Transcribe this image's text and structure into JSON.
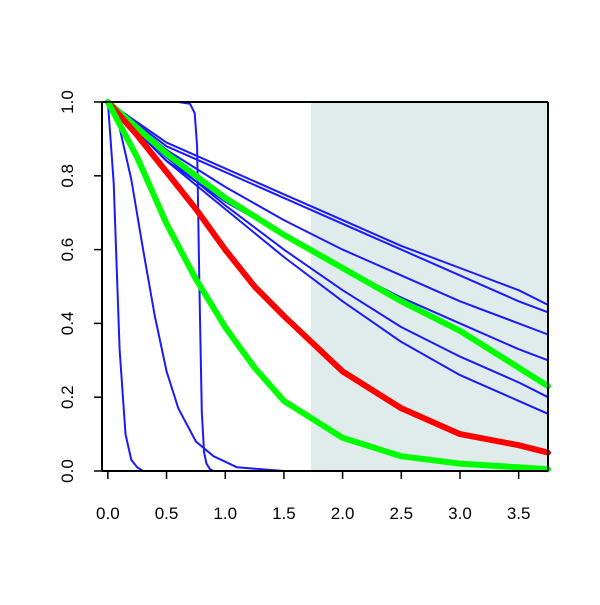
{
  "chart_data": {
    "type": "line",
    "title": "",
    "xlabel": "",
    "ylabel": "",
    "xlim": [
      -0.05,
      3.75
    ],
    "ylim": [
      0.0,
      1.0
    ],
    "x_ticks": [
      "0.0",
      "0.5",
      "1.0",
      "1.5",
      "2.0",
      "2.5",
      "3.0",
      "3.5"
    ],
    "y_ticks": [
      "0.0",
      "0.2",
      "0.4",
      "0.6",
      "0.8",
      "1.0"
    ],
    "grid": false,
    "shaded_region": {
      "x_start": 1.73,
      "x_end": 3.75,
      "color": "#e0ecec"
    },
    "series": [
      {
        "color": "#1a1aff",
        "linewidth": "thin",
        "x": [
          0.0,
          0.05,
          0.1,
          0.15,
          0.2,
          0.25,
          0.3,
          0.5,
          3.75
        ],
        "y": [
          1.0,
          0.78,
          0.33,
          0.1,
          0.03,
          0.01,
          0.0,
          0.0,
          0.0
        ]
      },
      {
        "color": "#1a1aff",
        "linewidth": "thin",
        "x": [
          0.0,
          0.1,
          0.2,
          0.3,
          0.4,
          0.5,
          0.6,
          0.75,
          0.9,
          1.1,
          1.5,
          3.75
        ],
        "y": [
          1.0,
          0.93,
          0.79,
          0.6,
          0.42,
          0.27,
          0.17,
          0.08,
          0.04,
          0.01,
          0.0,
          0.0
        ]
      },
      {
        "color": "#1a1aff",
        "linewidth": "thin",
        "x": [
          0.0,
          0.6,
          0.7,
          0.74,
          0.76,
          0.78,
          0.8,
          0.82,
          0.84,
          0.87,
          0.9,
          3.75
        ],
        "y": [
          1.0,
          1.0,
          0.995,
          0.97,
          0.88,
          0.5,
          0.16,
          0.05,
          0.02,
          0.005,
          0.0,
          0.0
        ]
      },
      {
        "color": "#1a1aff",
        "linewidth": "thin",
        "x": [
          0.0,
          0.5,
          1.0,
          1.5,
          2.0,
          2.5,
          3.0,
          3.5,
          3.75
        ],
        "y": [
          1.0,
          0.87,
          0.77,
          0.68,
          0.6,
          0.53,
          0.46,
          0.4,
          0.37
        ]
      },
      {
        "color": "#1a1aff",
        "linewidth": "thin",
        "x": [
          0.0,
          0.5,
          1.0,
          1.5,
          2.0,
          2.5,
          3.0,
          3.5,
          3.75
        ],
        "y": [
          1.0,
          0.84,
          0.73,
          0.64,
          0.55,
          0.47,
          0.4,
          0.33,
          0.3
        ]
      },
      {
        "color": "#1a1aff",
        "linewidth": "thin",
        "x": [
          0.0,
          0.5,
          1.0,
          1.5,
          2.0,
          2.5,
          3.0,
          3.5,
          3.75
        ],
        "y": [
          1.0,
          0.88,
          0.81,
          0.74,
          0.67,
          0.6,
          0.53,
          0.46,
          0.43
        ]
      },
      {
        "color": "#1a1aff",
        "linewidth": "thin",
        "x": [
          0.0,
          0.5,
          1.0,
          1.5,
          2.0,
          2.5,
          3.0,
          3.5,
          3.75
        ],
        "y": [
          1.0,
          0.89,
          0.82,
          0.75,
          0.68,
          0.61,
          0.55,
          0.49,
          0.45
        ]
      },
      {
        "color": "#1a1aff",
        "linewidth": "thin",
        "x": [
          0.0,
          0.5,
          1.0,
          1.5,
          2.0,
          2.5,
          3.0,
          3.5,
          3.75
        ],
        "y": [
          1.0,
          0.85,
          0.72,
          0.6,
          0.49,
          0.39,
          0.31,
          0.24,
          0.2
        ]
      },
      {
        "color": "#1a1aff",
        "linewidth": "thin",
        "x": [
          0.0,
          0.5,
          1.0,
          1.5,
          2.0,
          2.5,
          3.0,
          3.5,
          3.75
        ],
        "y": [
          1.0,
          0.84,
          0.71,
          0.58,
          0.46,
          0.35,
          0.26,
          0.19,
          0.155
        ]
      },
      {
        "color": "#00ff00",
        "linewidth": "thick",
        "x": [
          0.0,
          0.5,
          1.0,
          1.5,
          2.0,
          2.5,
          3.0,
          3.5,
          3.75
        ],
        "y": [
          1.0,
          0.86,
          0.74,
          0.64,
          0.55,
          0.46,
          0.38,
          0.28,
          0.23
        ]
      },
      {
        "color": "#ff0000",
        "linewidth": "thick",
        "x": [
          0.0,
          0.25,
          0.5,
          0.75,
          1.0,
          1.25,
          1.5,
          2.0,
          2.5,
          3.0,
          3.5,
          3.75
        ],
        "y": [
          1.0,
          0.91,
          0.81,
          0.71,
          0.6,
          0.5,
          0.42,
          0.27,
          0.17,
          0.1,
          0.07,
          0.05
        ]
      },
      {
        "color": "#00ff00",
        "linewidth": "thick",
        "x": [
          0.0,
          0.25,
          0.5,
          0.75,
          1.0,
          1.25,
          1.5,
          2.0,
          2.5,
          3.0,
          3.5,
          3.75
        ],
        "y": [
          1.0,
          0.85,
          0.67,
          0.52,
          0.39,
          0.28,
          0.19,
          0.09,
          0.04,
          0.02,
          0.01,
          0.005
        ]
      }
    ]
  }
}
